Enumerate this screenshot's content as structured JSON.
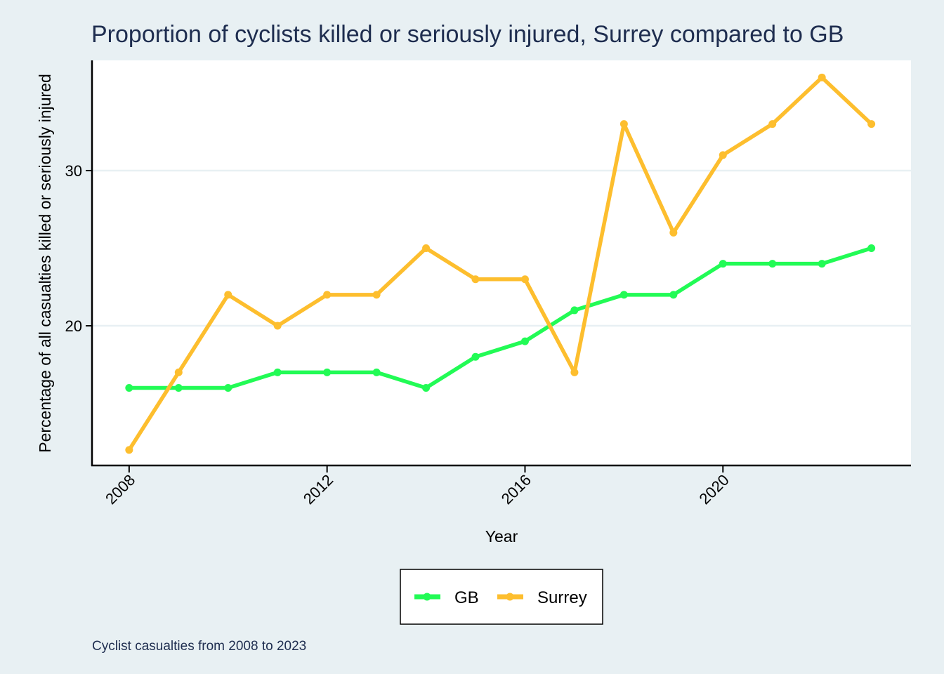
{
  "chart_data": {
    "type": "line",
    "title": "Proportion of cyclists killed or seriously injured, Surrey compared to GB",
    "xlabel": "Year",
    "ylabel": "Percentage of all casualties killed or seriously injured",
    "caption": "Cyclist casualties from 2008 to 2023",
    "x": [
      2008,
      2009,
      2010,
      2011,
      2012,
      2013,
      2014,
      2015,
      2016,
      2017,
      2018,
      2019,
      2020,
      2021,
      2022,
      2023
    ],
    "x_ticks": [
      2008,
      2012,
      2016,
      2020
    ],
    "y_ticks": [
      20,
      30
    ],
    "xlim": [
      2007.25,
      2023.8
    ],
    "ylim": [
      11,
      37.1
    ],
    "grid": true,
    "legend_position": "bottom-center",
    "series": [
      {
        "name": "GB",
        "color": "#22fb55",
        "values": [
          16,
          16,
          16,
          17,
          17,
          17,
          16,
          18,
          19,
          21,
          22,
          22,
          24,
          24,
          24,
          25
        ]
      },
      {
        "name": "Surrey",
        "color": "#fdbe2e",
        "values": [
          12,
          17,
          22,
          20,
          22,
          22,
          25,
          23,
          23,
          17,
          33,
          26,
          31,
          33,
          36,
          33
        ]
      }
    ]
  }
}
